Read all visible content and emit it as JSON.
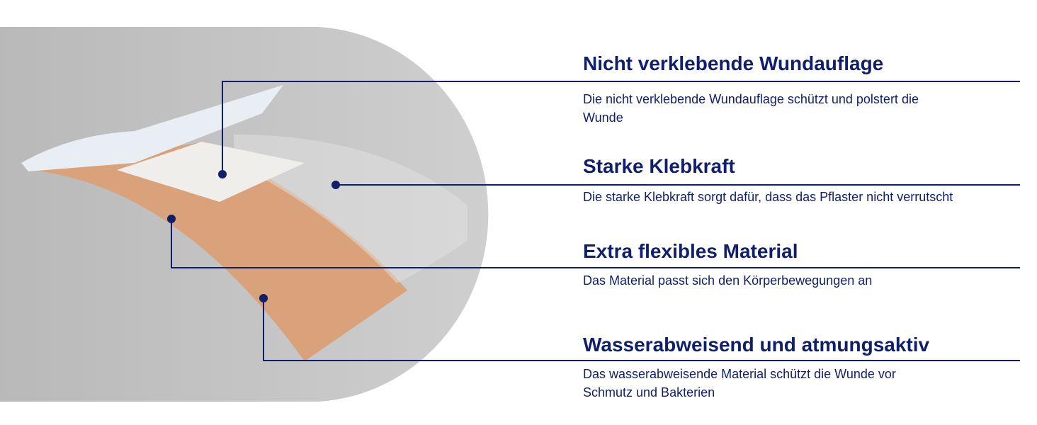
{
  "features": [
    {
      "title": "Nicht verklebende Wundauflage",
      "text": "Die nicht verklebende Wundauflage schützt und polstert die Wunde"
    },
    {
      "title": "Starke Klebkraft",
      "text": "Die starke Klebkraft sorgt dafür, dass das Pflaster nicht verrutscht"
    },
    {
      "title": "Extra flexibles Material",
      "text": "Das Material passt sich den Körperbewegungen an"
    },
    {
      "title": "Wasserabweisend und atmungsaktiv",
      "text": "Das wasserabweisende Material schützt die Wunde vor Schmutz und Bakterien"
    }
  ]
}
